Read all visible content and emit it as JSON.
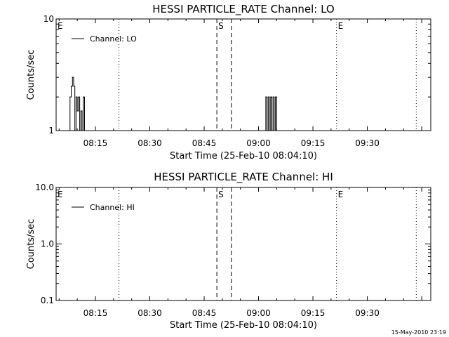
{
  "footer": {
    "timestamp": "15-May-2010 23:19"
  },
  "chart_data": [
    {
      "type": "line",
      "title": "HESSI PARTICLE_RATE Channel: LO",
      "xlabel": "Start Time (25-Feb-10 08:04:10)",
      "ylabel": "Counts/sec",
      "yscale": "log",
      "ylim": [
        1,
        10
      ],
      "y_ticks": [
        "1",
        "10"
      ],
      "xlim": [
        "08:04:10",
        "09:47:30"
      ],
      "x_ticks": [
        "08:15",
        "08:30",
        "08:45",
        "09:00",
        "09:15",
        "09:30"
      ],
      "legend": {
        "position": "top-left",
        "entries": [
          "Channel: LO"
        ]
      },
      "markers": [
        {
          "label": "E",
          "time": "08:04:10",
          "style": "none"
        },
        {
          "label": "",
          "time": "08:21:30",
          "style": "dotted"
        },
        {
          "label": "S",
          "time": "08:48:30",
          "style": "dashed"
        },
        {
          "label": "",
          "time": "08:52:30",
          "style": "dashed"
        },
        {
          "label": "E",
          "time": "09:21:30",
          "style": "dotted"
        },
        {
          "label": "",
          "time": "09:43:30",
          "style": "dotted"
        }
      ],
      "series": [
        {
          "name": "Channel: LO",
          "points": [
            [
              "08:07:30",
              1
            ],
            [
              "08:08:00",
              2
            ],
            [
              "08:08:20",
              2.5
            ],
            [
              "08:08:40",
              3
            ],
            [
              "08:09:00",
              2.5
            ],
            [
              "08:09:20",
              1
            ],
            [
              "08:09:40",
              2
            ],
            [
              "08:10:00",
              1.5
            ],
            [
              "08:10:20",
              2
            ],
            [
              "08:10:40",
              1
            ],
            [
              "08:11:00",
              1.5
            ],
            [
              "08:11:20",
              1
            ],
            [
              "08:11:40",
              2
            ],
            [
              "08:12:00",
              1
            ],
            [
              "09:01:40",
              1
            ],
            [
              "09:02:00",
              2
            ],
            [
              "09:02:20",
              1
            ],
            [
              "09:02:40",
              2
            ],
            [
              "09:03:00",
              1
            ],
            [
              "09:03:20",
              2
            ],
            [
              "09:03:40",
              1
            ],
            [
              "09:04:00",
              2
            ],
            [
              "09:04:20",
              1
            ],
            [
              "09:04:40",
              2
            ],
            [
              "09:05:00",
              1
            ]
          ]
        }
      ]
    },
    {
      "type": "line",
      "title": "HESSI PARTICLE_RATE Channel: HI",
      "xlabel": "Start Time (25-Feb-10 08:04:10)",
      "ylabel": "Counts/sec",
      "yscale": "log",
      "ylim": [
        0.1,
        10
      ],
      "y_ticks": [
        "0.1",
        "1.0",
        "10.0"
      ],
      "xlim": [
        "08:04:10",
        "09:47:30"
      ],
      "x_ticks": [
        "08:15",
        "08:30",
        "08:45",
        "09:00",
        "09:15",
        "09:30"
      ],
      "legend": {
        "position": "top-left",
        "entries": [
          "Channel: HI"
        ]
      },
      "markers": [
        {
          "label": "E",
          "time": "08:04:10",
          "style": "none"
        },
        {
          "label": "",
          "time": "08:21:30",
          "style": "dotted"
        },
        {
          "label": "S",
          "time": "08:48:30",
          "style": "dashed"
        },
        {
          "label": "",
          "time": "08:52:30",
          "style": "dashed"
        },
        {
          "label": "E",
          "time": "09:21:30",
          "style": "dotted"
        },
        {
          "label": "",
          "time": "09:43:30",
          "style": "dotted"
        }
      ],
      "series": [
        {
          "name": "Channel: HI",
          "points": []
        }
      ]
    }
  ]
}
